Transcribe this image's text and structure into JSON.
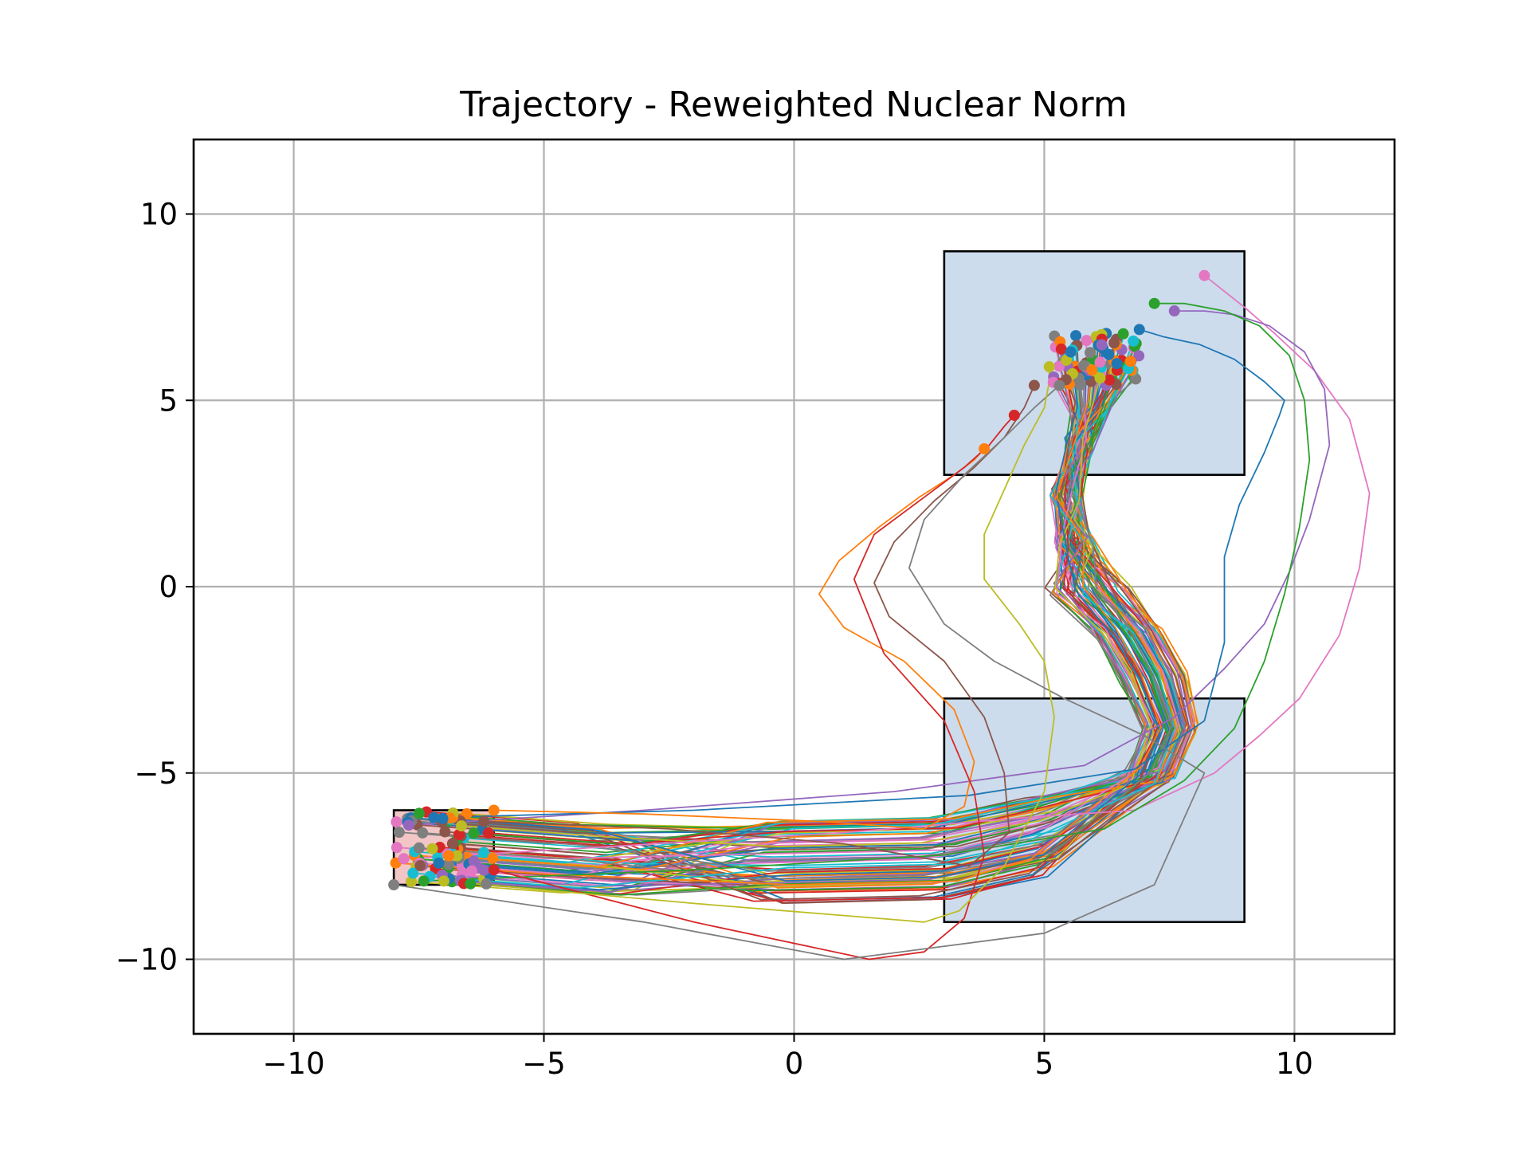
{
  "chart_data": {
    "type": "line",
    "title": "Trajectory - Reweighted Nuclear Norm",
    "xlabel": "",
    "ylabel": "",
    "xlim": [
      -12,
      12
    ],
    "ylim": [
      -12,
      12
    ],
    "xticks": [
      -10,
      -5,
      0,
      5,
      10
    ],
    "yticks": [
      -10,
      -5,
      0,
      5,
      10
    ],
    "xtick_labels": [
      "−10",
      "−5",
      "0",
      "5",
      "10"
    ],
    "ytick_labels": [
      "−10",
      "−5",
      "0",
      "5",
      "10"
    ],
    "grid": true,
    "regions": [
      {
        "role": "goal",
        "x": [
          3,
          9
        ],
        "y": [
          3,
          9
        ],
        "fill": "#ccdcec",
        "edge": "#000000"
      },
      {
        "role": "obstacle",
        "x": [
          3,
          9
        ],
        "y": [
          -9,
          -3
        ],
        "fill": "#ccdcec",
        "edge": "#000000"
      },
      {
        "role": "start",
        "x": [
          -8,
          -6
        ],
        "y": [
          -8,
          -6
        ],
        "fill": "#f2c6c6",
        "edge": "#000000"
      }
    ],
    "series_colors": [
      "#1f77b4",
      "#ff7f0e",
      "#2ca02c",
      "#d62728",
      "#9467bd",
      "#8c564b",
      "#e377c2",
      "#7f7f7f",
      "#bcbd22",
      "#17becf"
    ],
    "highlight_trajectories": [
      {
        "color": "#e377c2",
        "x": [
          -7.8,
          -4,
          1,
          4.6,
          6.8,
          8.4,
          9.3,
          10.1,
          10.9,
          11.3,
          11.5,
          11.1,
          10.4,
          9.6,
          9.0,
          8.2
        ],
        "y": [
          -7.3,
          -7.0,
          -6.6,
          -6.2,
          -6.0,
          -5.0,
          -4.0,
          -3.0,
          -1.3,
          0.5,
          2.5,
          4.5,
          5.8,
          6.8,
          7.5,
          8.35
        ]
      },
      {
        "color": "#9467bd",
        "x": [
          -7.7,
          -3,
          2,
          5.8,
          7.6,
          8.6,
          9.4,
          9.9,
          10.3,
          10.7,
          10.6,
          10.2,
          9.5,
          8.8,
          8.2,
          7.6
        ],
        "y": [
          -6.4,
          -6.0,
          -5.5,
          -4.8,
          -3.5,
          -2.2,
          -1.0,
          0.4,
          1.8,
          3.8,
          5.3,
          6.3,
          7.0,
          7.3,
          7.4,
          7.4
        ]
      },
      {
        "color": "#2ca02c",
        "x": [
          -7.4,
          -2,
          3,
          6.2,
          7.8,
          8.8,
          9.4,
          9.8,
          10.1,
          10.3,
          10.2,
          9.9,
          9.3,
          8.6,
          7.8,
          7.2
        ],
        "y": [
          -7.9,
          -7.6,
          -7.2,
          -6.5,
          -5.2,
          -3.8,
          -2.0,
          -0.2,
          1.6,
          3.4,
          5.0,
          6.2,
          7.0,
          7.4,
          7.6,
          7.6
        ]
      },
      {
        "color": "#1f77b4",
        "x": [
          -7.2,
          -2,
          3.5,
          6.8,
          8.2,
          8.6,
          8.6,
          8.9,
          9.4,
          9.7,
          9.8,
          9.4,
          8.8,
          8.1,
          7.4,
          6.9
        ],
        "y": [
          -6.2,
          -6.0,
          -5.6,
          -4.9,
          -3.6,
          -1.5,
          0.8,
          2.2,
          3.6,
          4.6,
          5.0,
          5.5,
          6.1,
          6.5,
          6.7,
          6.9
        ]
      },
      {
        "color": "#ff7f0e",
        "x": [
          -6.0,
          -3.0,
          0.5,
          2.6,
          3.4,
          3.6,
          3.2,
          2.2,
          1.0,
          0.5,
          0.9,
          1.7,
          2.5,
          3.2,
          3.6,
          3.8
        ],
        "y": [
          -6.0,
          -6.1,
          -6.3,
          -6.5,
          -5.9,
          -4.7,
          -3.3,
          -2.0,
          -1.1,
          -0.2,
          0.7,
          1.6,
          2.4,
          3.0,
          3.4,
          3.7
        ]
      },
      {
        "color": "#d62728",
        "x": [
          -6.0,
          -2,
          1.5,
          2.6,
          3.4,
          3.8,
          3.6,
          3.0,
          1.8,
          1.2,
          1.6,
          2.6,
          3.4,
          3.9,
          4.2,
          4.4
        ],
        "y": [
          -7.6,
          -9.0,
          -10.0,
          -9.8,
          -8.9,
          -7.2,
          -5.5,
          -3.6,
          -1.8,
          0.2,
          1.4,
          2.4,
          3.2,
          3.8,
          4.3,
          4.6
        ]
      },
      {
        "color": "#8c564b",
        "x": [
          -6.2,
          -2.5,
          1.0,
          3.5,
          4.3,
          4.2,
          3.8,
          3.0,
          1.9,
          1.6,
          2.0,
          2.8,
          3.6,
          4.2,
          4.6,
          4.8
        ],
        "y": [
          -6.3,
          -6.5,
          -6.9,
          -7.5,
          -6.6,
          -5.0,
          -3.5,
          -2.0,
          -0.8,
          0.1,
          1.2,
          2.3,
          3.2,
          4.0,
          4.8,
          5.4
        ]
      },
      {
        "color": "#7f7f7f",
        "x": [
          -8.0,
          -3.0,
          1.0,
          5.0,
          7.2,
          8.2,
          7.0,
          5.4,
          4.0,
          3.0,
          2.3,
          2.6,
          3.4,
          4.2,
          4.8,
          5.3
        ],
        "y": [
          -8.0,
          -9.0,
          -10.0,
          -9.3,
          -8.0,
          -5.0,
          -4.0,
          -3.0,
          -2.0,
          -1.0,
          0.5,
          1.8,
          3.0,
          4.0,
          4.8,
          5.4
        ]
      },
      {
        "color": "#bcbd22",
        "x": [
          -7.0,
          -2.0,
          2.6,
          3.3,
          4.2,
          5.0,
          5.2,
          5.0,
          4.5,
          3.8,
          3.8,
          4.2,
          4.6,
          5.0,
          5.1,
          5.1
        ],
        "y": [
          -7.9,
          -8.5,
          -9.0,
          -8.7,
          -7.5,
          -5.5,
          -3.5,
          -2.0,
          -1.0,
          0.2,
          1.4,
          2.6,
          3.8,
          4.8,
          5.5,
          5.9
        ]
      }
    ]
  }
}
